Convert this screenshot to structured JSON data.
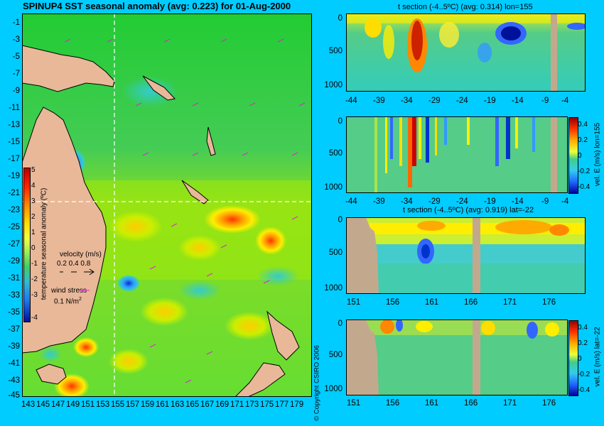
{
  "map": {
    "title": "SPINUP4 SST seasonal anomaly (avg: 0.223) for 01-Aug-2000",
    "lat_ticks": [
      "-1",
      "-3",
      "-5",
      "-7",
      "-9",
      "-11",
      "-13",
      "-15",
      "-17",
      "-19",
      "-21",
      "-23",
      "-25",
      "-27",
      "-29",
      "-31",
      "-33",
      "-35",
      "-37",
      "-39",
      "-41",
      "-43",
      "-45"
    ],
    "lon_ticks": [
      "143",
      "145",
      "147",
      "149",
      "151",
      "153",
      "155",
      "157",
      "159",
      "161",
      "163",
      "165",
      "167",
      "169",
      "171",
      "173",
      "175",
      "177",
      "179"
    ],
    "colorbar_ticks": [
      "5",
      "4",
      "3",
      "2",
      "1",
      "0",
      "-1",
      "-2",
      "-3",
      "-4"
    ],
    "colorbar_label": "temperature seasonal anomaly (ºC)",
    "velocity_label": "velocity (m/s)",
    "velocity_scale": "0.2 0.4 0.8",
    "wind_label": "wind stress",
    "wind_scale": "0.1 N/m",
    "wind_scale_exp": "2",
    "copyright": "© Copyright CSIRO 2006"
  },
  "panels": [
    {
      "title": "t section (-4..5ºC) (avg: 0.314) lon=155",
      "y_ticks": [
        "0",
        "500",
        "1000"
      ],
      "x_ticks": [
        "-44",
        "-39",
        "-34",
        "-29",
        "-24",
        "-19",
        "-14",
        "-9",
        "-4"
      ]
    },
    {
      "title": "",
      "y_ticks": [
        "0",
        "500",
        "1000"
      ],
      "x_ticks": [
        "-44",
        "-39",
        "-34",
        "-29",
        "-24",
        "-19",
        "-14",
        "-9",
        "-4"
      ],
      "cbar_label": "vel. E (m/s) lon=155",
      "cbar_ticks": [
        "0.4",
        "0.2",
        "0",
        "-0.2",
        "-0.4"
      ]
    },
    {
      "title": "t section (-4..5ºC) (avg: 0.919) lat=-22",
      "y_ticks": [
        "0",
        "500",
        "1000"
      ],
      "x_ticks": [
        "151",
        "156",
        "161",
        "166",
        "171",
        "176"
      ]
    },
    {
      "title": "",
      "y_ticks": [
        "0",
        "500",
        "1000"
      ],
      "x_ticks": [
        "151",
        "156",
        "161",
        "166",
        "171",
        "176"
      ],
      "cbar_label": "vel. E (m/s) lat=-22",
      "cbar_ticks": [
        "0.4",
        "0.2",
        "0",
        "-0.2",
        "-0.4"
      ]
    }
  ],
  "colors": {
    "background": "#00ccff",
    "land": "#e8b899",
    "section_land": "#c2a98e"
  },
  "chart_data": [
    {
      "type": "heatmap",
      "title": "SPINUP4 SST seasonal anomaly (avg: 0.223) for 01-Aug-2000",
      "x_range": [
        142,
        180
      ],
      "y_range": [
        -45,
        0
      ],
      "value_range": [
        -4,
        5
      ],
      "crosshair": {
        "lon": 155,
        "lat": -22
      },
      "anomaly_samples": [
        {
          "lon": 151.5,
          "lat": -22,
          "value": 1.5
        },
        {
          "lon": 164,
          "lat": -24,
          "value": 2.0
        },
        {
          "lon": 169,
          "lat": -26,
          "value": 3.0
        },
        {
          "lon": 173,
          "lat": -27,
          "value": 3.5
        },
        {
          "lon": 148.5,
          "lat": -43,
          "value": 3.5
        },
        {
          "lon": 148,
          "lat": -19,
          "value": -2.5
        },
        {
          "lon": 156.5,
          "lat": -32,
          "value": -3.0
        },
        {
          "lon": 160,
          "lat": -10,
          "value": 0.5
        }
      ]
    },
    {
      "type": "heatmap",
      "title": "t section (-4..5ºC) (avg: 0.314) lon=155",
      "x_range": [
        -46,
        -1
      ],
      "y_range": [
        0,
        1050
      ],
      "value_range": [
        -4,
        5
      ]
    },
    {
      "type": "heatmap",
      "title": "",
      "x_range": [
        -46,
        -1
      ],
      "y_range": [
        0,
        1050
      ],
      "value_range": [
        -0.4,
        0.4
      ]
    },
    {
      "type": "heatmap",
      "title": "t section (-4..5ºC) (avg: 0.919) lat=-22",
      "x_range": [
        149.5,
        180
      ],
      "y_range": [
        0,
        1050
      ],
      "value_range": [
        -4,
        5
      ]
    },
    {
      "type": "heatmap",
      "title": "",
      "x_range": [
        149.5,
        180
      ],
      "y_range": [
        0,
        1050
      ],
      "value_range": [
        -0.4,
        0.4
      ]
    }
  ]
}
